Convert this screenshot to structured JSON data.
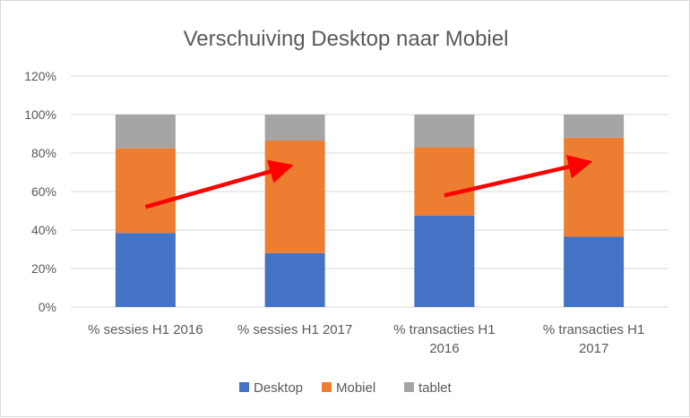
{
  "chart_data": {
    "type": "bar",
    "stacked": true,
    "percent_stacked": true,
    "title": "Verschuiving Desktop naar Mobiel",
    "xlabel": "",
    "ylabel": "",
    "categories": [
      [
        "% sessies H1 2016"
      ],
      [
        "% sessies H1 2017"
      ],
      [
        "% transacties H1",
        "2016"
      ],
      [
        "% transacties H1",
        "2017"
      ]
    ],
    "series": [
      {
        "name": "Desktop",
        "color": "#4472C4",
        "values": [
          38.5,
          28,
          47.5,
          36.5
        ]
      },
      {
        "name": "Mobiel",
        "color": "#ED7D31",
        "values": [
          44,
          58.5,
          35.5,
          51.5
        ]
      },
      {
        "name": "tablet",
        "color": "#A5A5A5",
        "values": [
          17.5,
          13.5,
          17,
          12
        ]
      }
    ],
    "ylim": [
      0,
      120
    ],
    "yticks": [
      "0%",
      "20%",
      "40%",
      "60%",
      "80%",
      "100%",
      "120%"
    ],
    "grid": true,
    "legend_position": "bottom",
    "annotations": [
      {
        "type": "arrow",
        "color": "#FF0000",
        "from": {
          "category_index": 0,
          "y": 52
        },
        "to": {
          "category_index": 1,
          "y": 73
        }
      },
      {
        "type": "arrow",
        "color": "#FF0000",
        "from": {
          "category_index": 2,
          "y": 58
        },
        "to": {
          "category_index": 3,
          "y": 75
        }
      }
    ]
  }
}
